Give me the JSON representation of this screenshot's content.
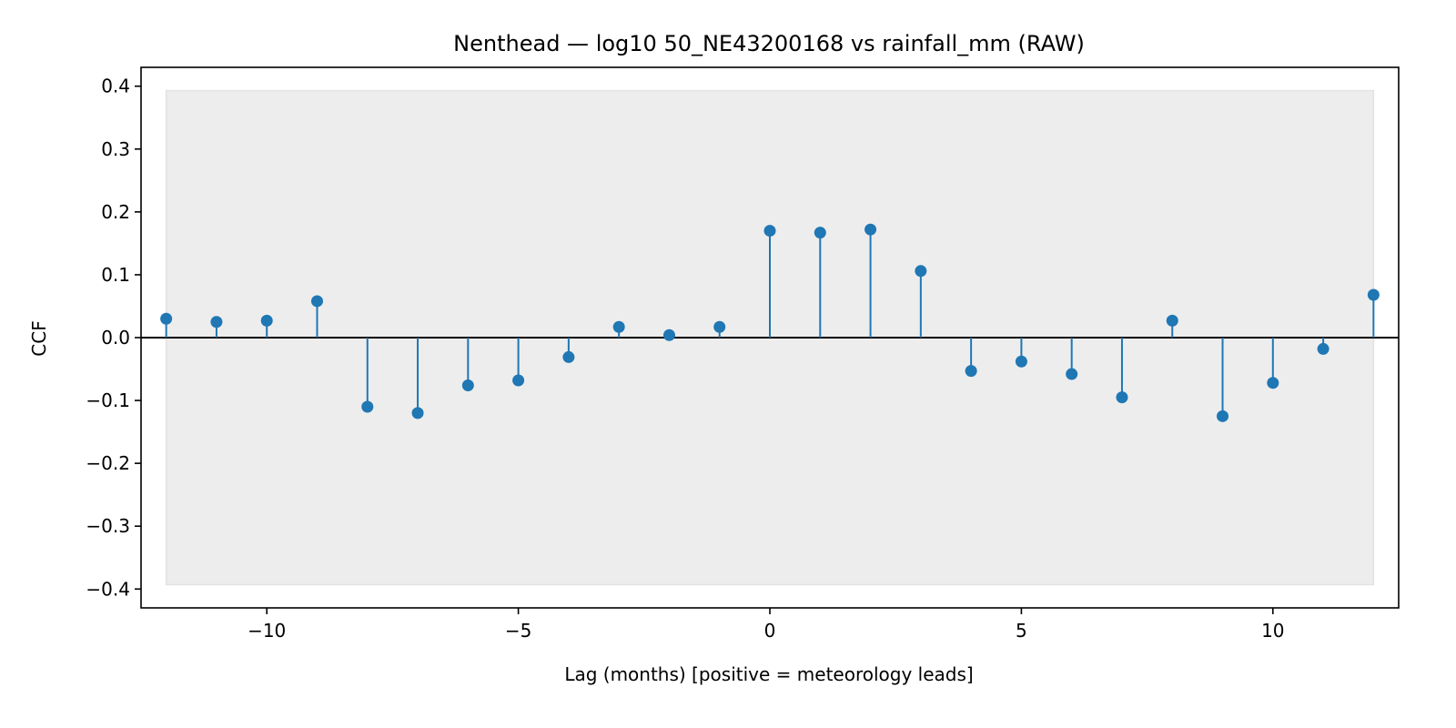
{
  "chart_data": {
    "type": "stem",
    "title": "Nenthead — log10 50_NE43200168 vs rainfall_mm (RAW)",
    "xlabel": "Lag (months)  [positive = meteorology leads]",
    "ylabel": "CCF",
    "xlim": [
      -12.5,
      12.5
    ],
    "ylim": [
      -0.43,
      0.43
    ],
    "x_ticks": [
      -10,
      -5,
      0,
      5,
      10
    ],
    "x_tick_labels": [
      "−10",
      "−5",
      "0",
      "5",
      "10"
    ],
    "y_ticks": [
      -0.4,
      -0.3,
      -0.2,
      -0.1,
      0.0,
      0.1,
      0.2,
      0.3,
      0.4
    ],
    "y_tick_labels": [
      "−0.4",
      "−0.3",
      "−0.2",
      "−0.1",
      "0.0",
      "0.1",
      "0.2",
      "0.3",
      "0.4"
    ],
    "grid": false,
    "confidence_band": {
      "x_range": [
        -12,
        12
      ],
      "lower": -0.393,
      "upper": 0.393
    },
    "zero_line": true,
    "series": [
      {
        "x": [
          -12,
          -11,
          -10,
          -9,
          -8,
          -7,
          -6,
          -5,
          -4,
          -3,
          -2,
          -1,
          0,
          1,
          2,
          3,
          4,
          5,
          6,
          7,
          8,
          9,
          10,
          11,
          12
        ],
        "values": [
          0.03,
          0.025,
          0.027,
          0.058,
          -0.11,
          -0.12,
          -0.076,
          -0.068,
          -0.031,
          0.017,
          0.004,
          0.017,
          0.17,
          0.167,
          0.172,
          0.106,
          -0.053,
          -0.038,
          -0.058,
          -0.095,
          0.027,
          -0.125,
          -0.072,
          -0.018,
          0.068
        ]
      }
    ],
    "colors": {
      "stem": "#1f77b4",
      "marker": "#1f77b4",
      "band": "#ededed",
      "band_edge": "#e2e2e2",
      "zero_line": "#000000",
      "axes": "#000000"
    }
  }
}
